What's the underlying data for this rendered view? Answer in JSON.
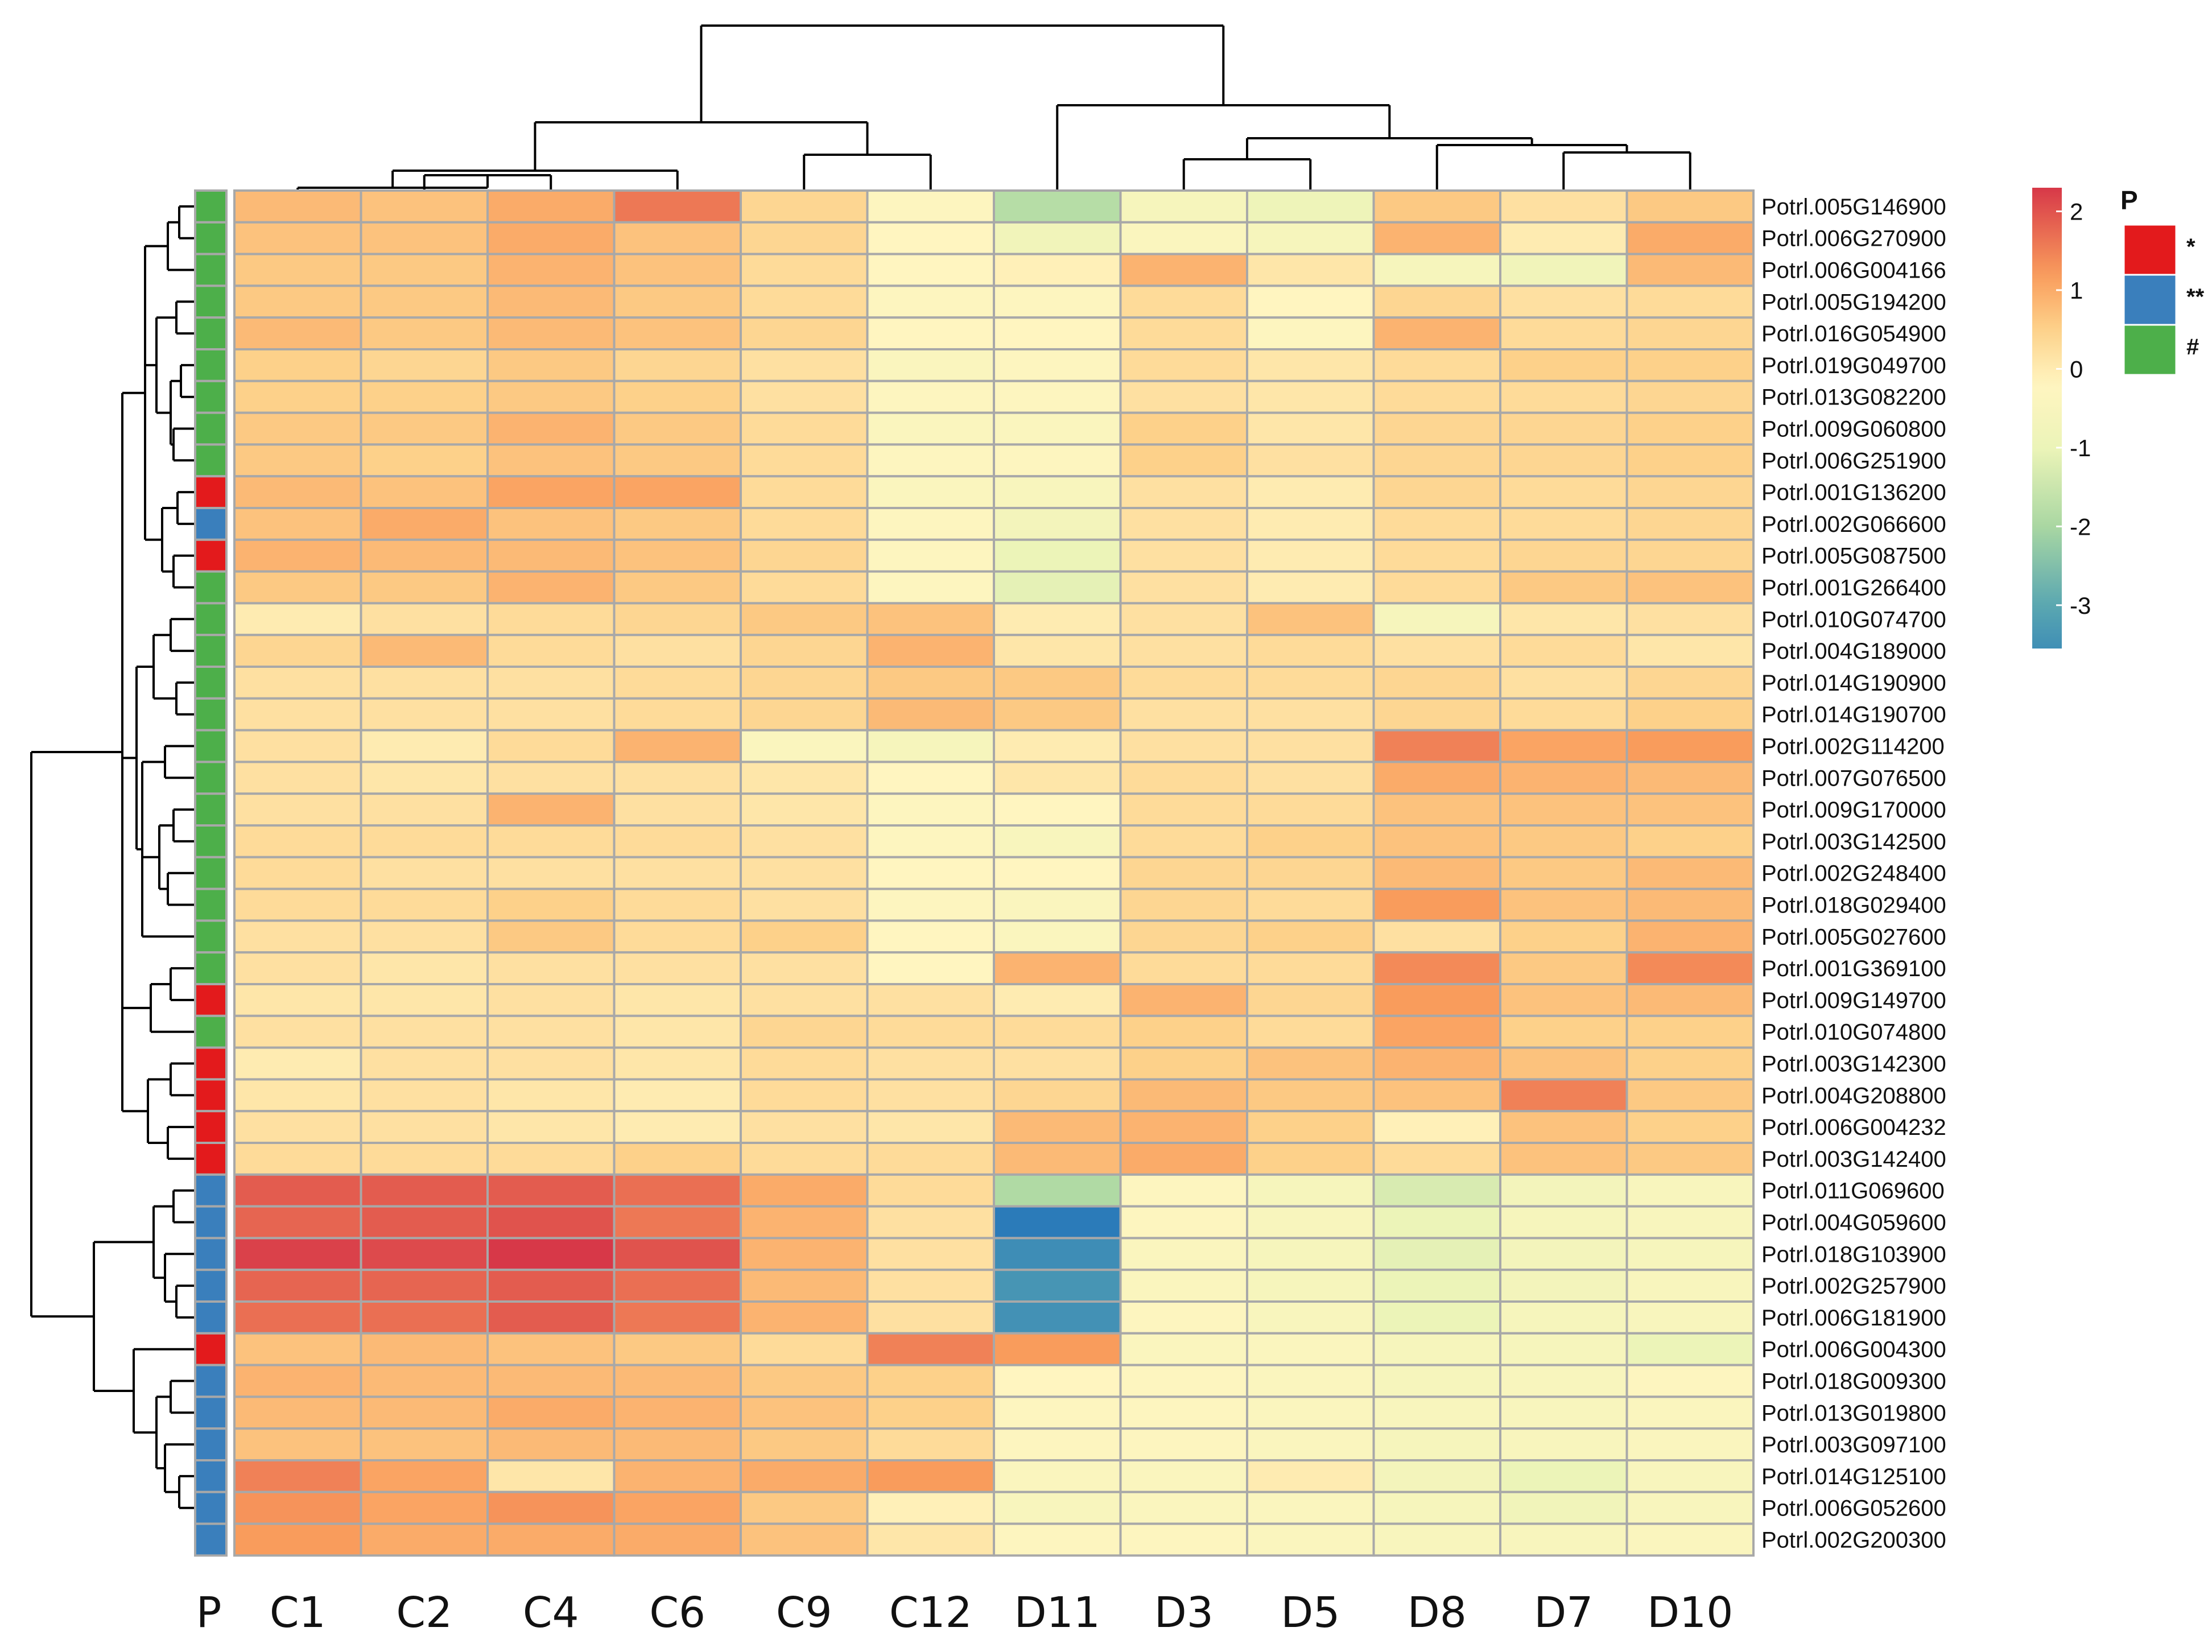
{
  "chart_data": {
    "type": "heatmap",
    "title": "",
    "columns": [
      "C1",
      "C2",
      "C4",
      "C6",
      "C9",
      "C12",
      "D11",
      "D3",
      "D5",
      "D8",
      "D7",
      "D10"
    ],
    "annotation_column_label": "P",
    "rows": [
      {
        "gene": "Potrl.005G146900",
        "p": "#",
        "values": [
          0.8,
          0.7,
          1.0,
          1.6,
          0.4,
          -0.3,
          -1.8,
          -0.6,
          -0.9,
          0.6,
          0.2,
          0.6
        ]
      },
      {
        "gene": "Potrl.006G270900",
        "p": "#",
        "values": [
          0.7,
          0.7,
          1.0,
          0.7,
          0.4,
          -0.2,
          -0.8,
          -0.4,
          -0.6,
          0.9,
          0.0,
          1.0
        ]
      },
      {
        "gene": "Potrl.006G004166",
        "p": "#",
        "values": [
          0.6,
          0.6,
          0.9,
          0.7,
          0.3,
          -0.2,
          -0.1,
          0.9,
          0.1,
          -0.6,
          -0.8,
          0.8
        ]
      },
      {
        "gene": "Potrl.005G194200",
        "p": "#",
        "values": [
          0.6,
          0.6,
          0.8,
          0.6,
          0.3,
          -0.3,
          -0.3,
          0.3,
          -0.2,
          0.4,
          0.2,
          0.3
        ]
      },
      {
        "gene": "Potrl.016G054900",
        "p": "#",
        "values": [
          0.8,
          0.6,
          0.8,
          0.7,
          0.4,
          -0.2,
          -0.2,
          0.3,
          -0.3,
          0.9,
          0.3,
          0.4
        ]
      },
      {
        "gene": "Potrl.019G049700",
        "p": "#",
        "values": [
          0.5,
          0.4,
          0.6,
          0.4,
          0.2,
          -0.4,
          -0.3,
          0.3,
          0.1,
          0.3,
          0.5,
          0.5
        ]
      },
      {
        "gene": "Potrl.013G082200",
        "p": "#",
        "values": [
          0.5,
          0.5,
          0.6,
          0.5,
          0.2,
          -0.3,
          -0.3,
          0.2,
          0.1,
          0.3,
          0.3,
          0.4
        ]
      },
      {
        "gene": "Potrl.009G060800",
        "p": "#",
        "values": [
          0.6,
          0.6,
          0.9,
          0.6,
          0.3,
          -0.4,
          -0.4,
          0.5,
          0.1,
          0.4,
          0.4,
          0.5
        ]
      },
      {
        "gene": "Potrl.006G251900",
        "p": "#",
        "values": [
          0.6,
          0.5,
          0.7,
          0.6,
          0.3,
          -0.3,
          -0.3,
          0.5,
          0.2,
          0.4,
          0.4,
          0.5
        ]
      },
      {
        "gene": "Potrl.001G136200",
        "p": "*",
        "values": [
          0.8,
          0.7,
          1.1,
          1.1,
          0.3,
          -0.4,
          -0.5,
          0.2,
          0.0,
          0.4,
          0.3,
          0.4
        ]
      },
      {
        "gene": "Potrl.002G066600",
        "p": "**",
        "values": [
          0.7,
          1.0,
          0.7,
          0.6,
          0.3,
          -0.3,
          -0.7,
          0.2,
          0.0,
          0.3,
          0.3,
          0.4
        ]
      },
      {
        "gene": "Potrl.005G087500",
        "p": "*",
        "values": [
          0.9,
          0.8,
          0.8,
          0.7,
          0.4,
          -0.3,
          -1.0,
          0.2,
          0.0,
          0.3,
          0.4,
          0.4
        ]
      },
      {
        "gene": "Potrl.001G266400",
        "p": "#",
        "values": [
          0.6,
          0.6,
          0.9,
          0.6,
          0.3,
          -0.3,
          -1.1,
          0.2,
          0.0,
          0.3,
          0.6,
          0.7
        ]
      },
      {
        "gene": "Potrl.010G074700",
        "p": "#",
        "values": [
          0.0,
          0.2,
          0.3,
          0.4,
          0.6,
          0.7,
          0.0,
          0.2,
          0.7,
          -0.6,
          0.1,
          0.2
        ]
      },
      {
        "gene": "Potrl.004G189000",
        "p": "#",
        "values": [
          0.4,
          0.8,
          0.3,
          0.2,
          0.4,
          0.9,
          0.1,
          0.2,
          0.3,
          0.2,
          0.3,
          0.1
        ]
      },
      {
        "gene": "Potrl.014G190900",
        "p": "#",
        "values": [
          0.2,
          0.2,
          0.2,
          0.3,
          0.4,
          0.6,
          0.6,
          0.3,
          0.3,
          0.4,
          0.2,
          0.4
        ]
      },
      {
        "gene": "Potrl.014G190700",
        "p": "#",
        "values": [
          0.2,
          0.2,
          0.2,
          0.3,
          0.4,
          0.8,
          0.6,
          0.2,
          0.2,
          0.4,
          0.3,
          0.5
        ]
      },
      {
        "gene": "Potrl.002G114200",
        "p": "#",
        "values": [
          0.2,
          0.0,
          0.3,
          0.9,
          -0.4,
          -0.6,
          0.0,
          0.2,
          0.2,
          1.5,
          1.1,
          1.2
        ]
      },
      {
        "gene": "Potrl.007G076500",
        "p": "#",
        "values": [
          0.2,
          0.1,
          0.2,
          0.2,
          0.1,
          -0.2,
          0.1,
          0.3,
          0.2,
          1.0,
          0.9,
          0.8
        ]
      },
      {
        "gene": "Potrl.009G170000",
        "p": "#",
        "values": [
          0.2,
          0.2,
          0.9,
          0.2,
          0.1,
          -0.3,
          -0.2,
          0.3,
          0.3,
          0.7,
          0.7,
          0.7
        ]
      },
      {
        "gene": "Potrl.003G142500",
        "p": "#",
        "values": [
          0.3,
          0.3,
          0.3,
          0.3,
          0.2,
          -0.3,
          -0.5,
          0.3,
          0.5,
          0.7,
          0.6,
          0.5
        ]
      },
      {
        "gene": "Potrl.002G248400",
        "p": "#",
        "values": [
          0.3,
          0.2,
          0.2,
          0.2,
          0.2,
          -0.2,
          -0.2,
          0.4,
          0.4,
          0.8,
          0.6,
          0.8
        ]
      },
      {
        "gene": "Potrl.018G029400",
        "p": "#",
        "values": [
          0.3,
          0.3,
          0.5,
          0.3,
          0.2,
          -0.3,
          -0.4,
          0.4,
          0.3,
          1.2,
          0.7,
          0.8
        ]
      },
      {
        "gene": "Potrl.005G027600",
        "p": "#",
        "values": [
          0.2,
          0.2,
          0.6,
          0.3,
          0.5,
          -0.2,
          -0.4,
          0.4,
          0.5,
          0.2,
          0.5,
          0.9
        ]
      },
      {
        "gene": "Potrl.001G369100",
        "p": "#",
        "values": [
          0.2,
          0.1,
          0.2,
          0.2,
          0.2,
          -0.2,
          0.9,
          0.3,
          0.3,
          1.4,
          0.6,
          1.4
        ]
      },
      {
        "gene": "Potrl.009G149700",
        "p": "*",
        "values": [
          0.1,
          0.1,
          0.2,
          0.1,
          0.2,
          0.2,
          0.0,
          0.9,
          0.4,
          1.2,
          0.7,
          0.8
        ]
      },
      {
        "gene": "Potrl.010G074800",
        "p": "#",
        "values": [
          0.2,
          0.2,
          0.2,
          0.1,
          0.4,
          0.3,
          0.3,
          0.5,
          0.3,
          1.1,
          0.5,
          0.5
        ]
      },
      {
        "gene": "Potrl.003G142300",
        "p": "*",
        "values": [
          0.0,
          0.2,
          0.2,
          0.1,
          0.3,
          0.2,
          0.2,
          0.5,
          0.7,
          0.9,
          0.7,
          0.5
        ]
      },
      {
        "gene": "Potrl.004G208800",
        "p": "*",
        "values": [
          0.1,
          0.2,
          0.1,
          0.0,
          0.3,
          0.2,
          0.4,
          0.8,
          0.6,
          0.7,
          1.5,
          0.6
        ]
      },
      {
        "gene": "Potrl.006G004232",
        "p": "*",
        "values": [
          0.2,
          0.2,
          0.1,
          0.0,
          0.2,
          0.1,
          0.8,
          0.9,
          0.5,
          -0.1,
          0.7,
          0.5
        ]
      },
      {
        "gene": "Potrl.003G142400",
        "p": "*",
        "values": [
          0.3,
          0.3,
          0.3,
          0.5,
          0.3,
          0.3,
          0.8,
          1.0,
          0.5,
          0.3,
          0.7,
          0.6
        ]
      },
      {
        "gene": "Potrl.011G069600",
        "p": "**",
        "values": [
          1.9,
          1.9,
          1.9,
          1.7,
          1.0,
          0.3,
          -1.9,
          -0.3,
          -0.6,
          -1.3,
          -0.7,
          -0.5
        ]
      },
      {
        "gene": "Potrl.004G059600",
        "p": "**",
        "values": [
          1.8,
          1.9,
          2.0,
          1.6,
          0.9,
          0.2,
          -4.0,
          -0.3,
          -0.5,
          -1.0,
          -0.6,
          -0.5
        ]
      },
      {
        "gene": "Potrl.018G103900",
        "p": "**",
        "values": [
          2.2,
          2.1,
          2.3,
          2.0,
          0.9,
          0.2,
          -3.6,
          -0.4,
          -0.6,
          -1.1,
          -0.7,
          -0.6
        ]
      },
      {
        "gene": "Potrl.002G257900",
        "p": "**",
        "values": [
          1.8,
          1.8,
          1.9,
          1.7,
          0.8,
          0.2,
          -3.4,
          -0.4,
          -0.6,
          -1.0,
          -0.7,
          -0.5
        ]
      },
      {
        "gene": "Potrl.006G181900",
        "p": "**",
        "values": [
          1.7,
          1.7,
          1.9,
          1.6,
          0.9,
          0.2,
          -3.5,
          -0.3,
          -0.5,
          -1.0,
          -0.6,
          -0.5
        ]
      },
      {
        "gene": "Potrl.006G004300",
        "p": "*",
        "values": [
          0.7,
          0.8,
          0.7,
          0.6,
          0.3,
          1.5,
          1.2,
          -0.4,
          -0.4,
          -0.6,
          -0.6,
          -1.0
        ]
      },
      {
        "gene": "Potrl.018G009300",
        "p": "**",
        "values": [
          0.9,
          0.8,
          0.8,
          0.8,
          0.6,
          0.5,
          -0.2,
          -0.3,
          -0.4,
          -0.6,
          -0.5,
          -0.3
        ]
      },
      {
        "gene": "Potrl.013G019800",
        "p": "**",
        "values": [
          0.8,
          0.8,
          1.0,
          0.9,
          0.7,
          0.5,
          -0.3,
          -0.3,
          -0.4,
          -0.5,
          -0.5,
          -0.4
        ]
      },
      {
        "gene": "Potrl.003G097100",
        "p": "**",
        "values": [
          0.7,
          0.7,
          0.8,
          0.8,
          0.6,
          0.3,
          -0.3,
          -0.3,
          -0.4,
          -0.6,
          -0.5,
          -0.4
        ]
      },
      {
        "gene": "Potrl.014G125100",
        "p": "**",
        "values": [
          1.5,
          1.1,
          0.1,
          0.9,
          1.0,
          1.2,
          -0.4,
          -0.4,
          0.0,
          -0.7,
          -1.0,
          -0.5
        ]
      },
      {
        "gene": "Potrl.006G052600",
        "p": "**",
        "values": [
          1.3,
          1.1,
          1.3,
          1.1,
          0.6,
          -0.1,
          -0.5,
          -0.4,
          -0.4,
          -0.6,
          -0.8,
          -0.5
        ]
      },
      {
        "gene": "Potrl.002G200300",
        "p": "**",
        "values": [
          1.2,
          1.0,
          1.0,
          1.0,
          0.7,
          0.1,
          -0.3,
          -0.3,
          -0.4,
          -0.5,
          -0.5,
          -0.4
        ]
      }
    ],
    "color_scale": {
      "ticks": [
        2,
        1,
        0,
        -1,
        -2,
        -3
      ],
      "tick_labels": [
        "2",
        "1",
        "0",
        "-1",
        "-2",
        "-3"
      ],
      "range": [
        -4,
        2.3
      ],
      "stops": [
        {
          "value": -4.0,
          "color": "#2b7bb9"
        },
        {
          "value": -3.0,
          "color": "#5aa7b1"
        },
        {
          "value": -2.0,
          "color": "#a9d7a2"
        },
        {
          "value": -1.0,
          "color": "#ecf4b8"
        },
        {
          "value": -0.2,
          "color": "#fff5c0"
        },
        {
          "value": 0.5,
          "color": "#fdd18a"
        },
        {
          "value": 1.2,
          "color": "#f99c5c"
        },
        {
          "value": 2.3,
          "color": "#d73848"
        }
      ]
    },
    "annotation_legend": {
      "title": "P",
      "items": [
        {
          "label": "*",
          "color": "#e31a1c"
        },
        {
          "label": "**",
          "color": "#3a7fbc"
        },
        {
          "label": "#",
          "color": "#4daf4a"
        }
      ]
    },
    "grid_color": "#a8a8a8"
  }
}
